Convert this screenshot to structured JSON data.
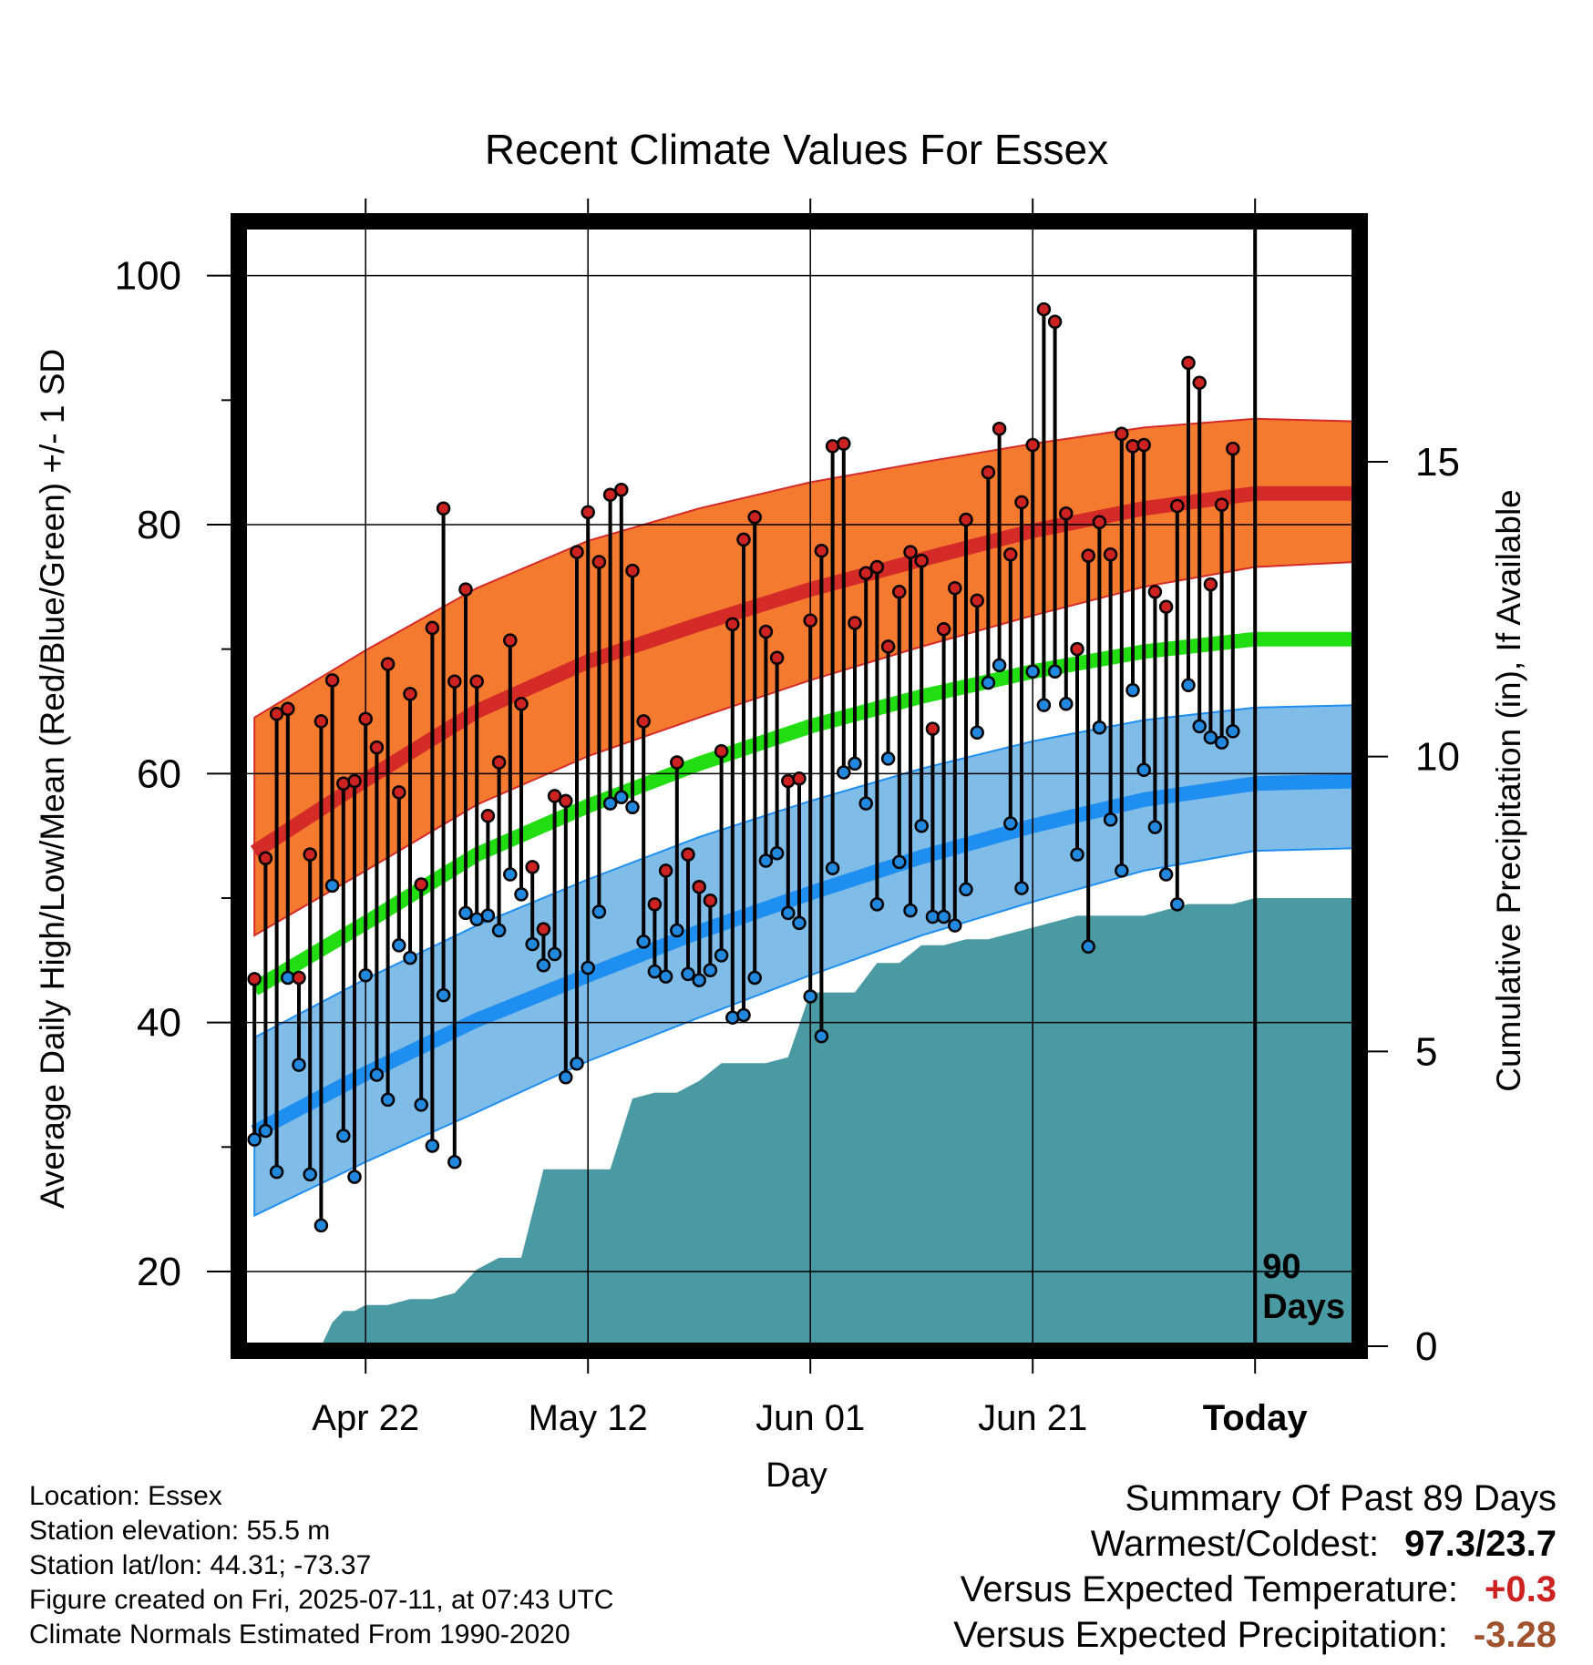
{
  "chart_data": {
    "type": "line",
    "title": "Recent Climate Values For Essex",
    "xlabel": "Day",
    "ylabel": "Average Daily High/Low/Mean (Red/Blue/Green) +/- 1 SD",
    "y2label": "Cumulative Precipitation (in), If Available",
    "xlim": [
      -11,
      89
    ],
    "ylim": [
      14,
      104
    ],
    "y2lim": [
      0,
      19
    ],
    "x_ticks": [
      {
        "x": 0,
        "label": "Apr 22"
      },
      {
        "x": 20,
        "label": "May 12"
      },
      {
        "x": 40,
        "label": "Jun 01"
      },
      {
        "x": 60,
        "label": "Jun 21"
      },
      {
        "x": 80,
        "label": "Today"
      }
    ],
    "y_ticks": [
      20,
      40,
      60,
      80,
      100
    ],
    "y2_ticks": [
      0,
      5,
      10,
      15
    ],
    "today_label": "90\nDays",
    "colors": {
      "high_band": "#f47a30",
      "high_line": "#d42a28",
      "low_band": "#7fbce8",
      "low_line": "#1e8ef0",
      "mean_line": "#22dd11",
      "precip": "#4a9aa4",
      "high_marker": "#cc2222",
      "low_marker": "#2288dd"
    },
    "normals": {
      "x": [
        -10,
        0,
        10,
        20,
        30,
        40,
        50,
        60,
        70,
        80,
        89
      ],
      "high_mean": [
        53.7,
        59.5,
        65.0,
        69.0,
        72.0,
        74.8,
        77.2,
        79.5,
        81.3,
        82.5,
        82.5
      ],
      "high_sd_upper": [
        64.5,
        69.9,
        74.9,
        78.7,
        81.3,
        83.4,
        85.0,
        86.5,
        87.8,
        88.5,
        88.3
      ],
      "high_sd_lower": [
        47.0,
        52.2,
        57.5,
        61.4,
        64.5,
        67.5,
        70.2,
        72.7,
        75.0,
        76.6,
        77.0
      ],
      "mean": [
        42.7,
        48.0,
        53.5,
        57.4,
        60.8,
        63.8,
        66.2,
        68.2,
        69.8,
        70.8,
        70.8
      ],
      "low_mean": [
        31.2,
        35.9,
        40.2,
        43.8,
        47.3,
        50.4,
        53.3,
        55.8,
        57.9,
        59.2,
        59.4
      ],
      "low_sd_upper": [
        38.8,
        43.5,
        47.8,
        51.5,
        54.9,
        57.8,
        60.4,
        62.6,
        64.3,
        65.3,
        65.5
      ],
      "low_sd_lower": [
        24.5,
        28.8,
        32.8,
        36.9,
        40.4,
        43.8,
        47.0,
        49.7,
        52.2,
        53.8,
        54.0
      ]
    },
    "series": [
      {
        "name": "High",
        "values": [
          43.5,
          53.2,
          64.8,
          65.2,
          43.6,
          53.5,
          64.2,
          67.5,
          59.2,
          59.4,
          64.4,
          62.1,
          68.8,
          58.5,
          66.4,
          51.1,
          71.7,
          81.3,
          67.4,
          74.8,
          67.4,
          56.6,
          60.9,
          70.7,
          65.6,
          52.5,
          47.5,
          58.2,
          57.8,
          77.8,
          81.0,
          77.0,
          82.4,
          82.8,
          76.3,
          64.2,
          49.5,
          52.2,
          60.9,
          53.5,
          50.9,
          49.8,
          61.8,
          72.0,
          78.8,
          80.6,
          71.4,
          69.3,
          59.4,
          59.6,
          72.3,
          77.9,
          86.3,
          86.5,
          72.1,
          76.1,
          76.6,
          70.2,
          74.6,
          77.8,
          77.1,
          63.6,
          71.6,
          74.9,
          80.4,
          73.9,
          84.2,
          87.7,
          77.6,
          81.8,
          86.4,
          97.3,
          96.3,
          80.9,
          70.0,
          77.5,
          80.2,
          77.6,
          87.3,
          86.3,
          86.4,
          74.6,
          73.4,
          81.5,
          93.0,
          91.4,
          75.2,
          81.6,
          86.1
        ]
      },
      {
        "name": "Low",
        "values": [
          30.6,
          31.3,
          28.0,
          43.6,
          36.6,
          27.8,
          23.7,
          51.0,
          30.9,
          27.6,
          43.8,
          35.8,
          33.8,
          46.2,
          45.2,
          33.4,
          30.1,
          42.2,
          28.8,
          48.8,
          48.3,
          48.6,
          47.4,
          51.9,
          50.3,
          46.3,
          44.6,
          45.5,
          35.6,
          36.7,
          44.4,
          48.9,
          57.6,
          58.1,
          57.3,
          46.5,
          44.1,
          43.7,
          47.4,
          43.9,
          43.4,
          44.2,
          45.4,
          40.4,
          40.6,
          43.6,
          53.0,
          53.6,
          48.8,
          48.0,
          42.1,
          38.9,
          52.4,
          60.1,
          60.8,
          57.6,
          49.5,
          61.2,
          52.9,
          49.0,
          55.8,
          48.5,
          48.5,
          47.8,
          50.7,
          63.3,
          67.3,
          68.7,
          56.0,
          50.8,
          68.2,
          65.5,
          68.2,
          65.6,
          53.5,
          46.1,
          63.7,
          56.3,
          52.2,
          66.7,
          60.3,
          55.7,
          51.9,
          49.5,
          67.1,
          63.8,
          62.9,
          62.5,
          63.4
        ]
      },
      {
        "name": "Cumulative Precipitation",
        "x": [
          -10,
          -4,
          -3,
          -2,
          -1,
          0,
          2,
          4,
          6,
          8,
          9,
          10,
          12,
          13,
          14,
          16,
          18,
          20,
          22,
          24,
          26,
          28,
          30,
          32,
          34,
          36,
          38,
          40,
          42,
          44,
          46,
          48,
          50,
          52,
          54,
          56,
          58,
          60,
          62,
          64,
          66,
          68,
          70,
          72,
          74,
          76,
          78,
          80,
          82,
          84,
          86,
          89
        ],
        "values": [
          0,
          0,
          0.4,
          0.6,
          0.6,
          0.7,
          0.7,
          0.8,
          0.8,
          0.9,
          1.1,
          1.3,
          1.5,
          1.5,
          1.5,
          3.0,
          3.0,
          3.0,
          3.0,
          4.2,
          4.3,
          4.3,
          4.5,
          4.8,
          4.8,
          4.8,
          4.9,
          6.0,
          6.0,
          6.0,
          6.5,
          6.5,
          6.8,
          6.8,
          6.9,
          6.9,
          7.0,
          7.1,
          7.2,
          7.3,
          7.3,
          7.3,
          7.3,
          7.4,
          7.5,
          7.5,
          7.5,
          7.6,
          7.6,
          7.6,
          7.6,
          7.6
        ]
      }
    ],
    "high_x_start": -10,
    "low_x_start": -10
  },
  "info": {
    "location": "Location: Essex",
    "elevation": "Station elevation: 55.5 m",
    "latlon": "Station lat/lon: 44.31; -73.37",
    "created": "Figure created on Fri, 2025-07-11, at 07:43 UTC",
    "normals": "Climate Normals Estimated From 1990-2020"
  },
  "summary": {
    "title": "Summary Of Past 89 Days",
    "warm_cold_label": "Warmest/Coldest:",
    "warm_cold_value": "97.3/23.7",
    "temp_label": "Versus Expected Temperature:",
    "temp_value": "+0.3",
    "temp_color": "#cc2222",
    "precip_label": "Versus Expected Precipitation:",
    "precip_value": "-3.28",
    "precip_color": "#a0522d"
  }
}
